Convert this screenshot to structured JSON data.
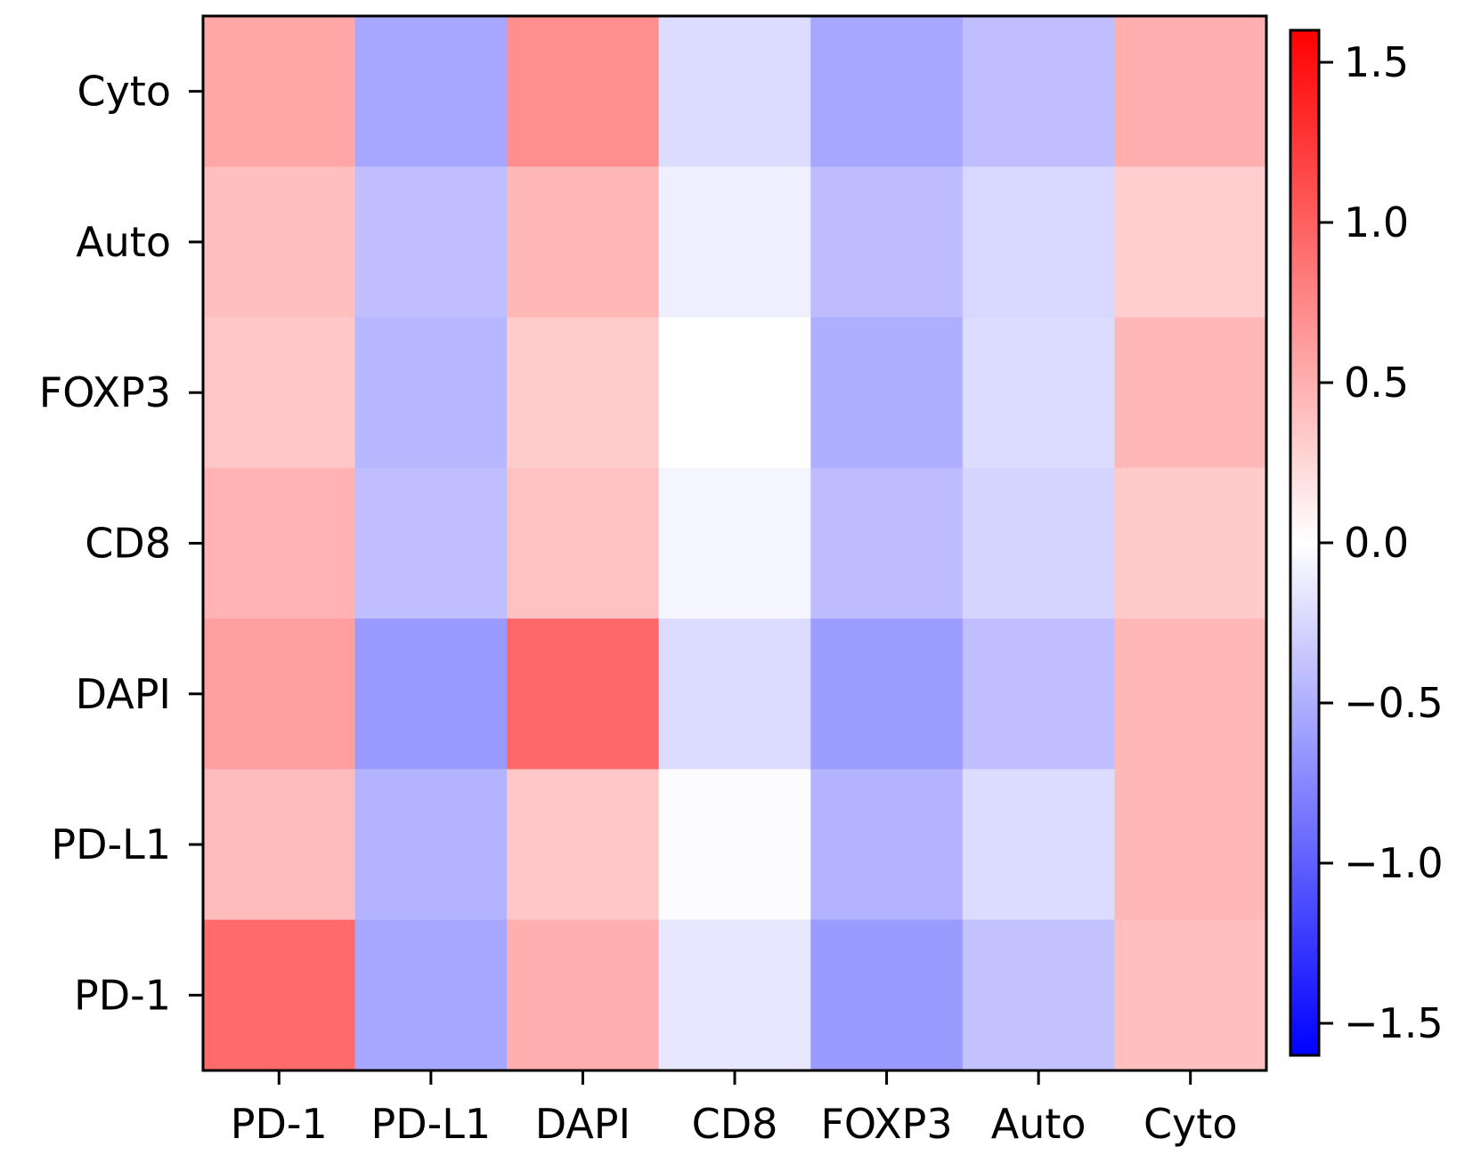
{
  "chart_data": {
    "type": "heatmap",
    "title": "",
    "xlabel": "",
    "ylabel": "",
    "x_categories": [
      "PD-1",
      "PD-L1",
      "DAPI",
      "CD8",
      "FOXP3",
      "Auto",
      "Cyto"
    ],
    "y_categories_top_to_bottom": [
      "Cyto",
      "Auto",
      "FOXP3",
      "CD8",
      "DAPI",
      "PD-L1",
      "PD-1"
    ],
    "values_top_to_bottom": [
      [
        0.55,
        -0.55,
        0.7,
        -0.22,
        -0.55,
        -0.4,
        0.5
      ],
      [
        0.4,
        -0.4,
        0.45,
        -0.1,
        -0.42,
        -0.25,
        0.3
      ],
      [
        0.35,
        -0.45,
        0.32,
        0.0,
        -0.5,
        -0.22,
        0.45
      ],
      [
        0.48,
        -0.4,
        0.38,
        -0.06,
        -0.42,
        -0.27,
        0.33
      ],
      [
        0.6,
        -0.63,
        0.95,
        -0.22,
        -0.62,
        -0.4,
        0.45
      ],
      [
        0.42,
        -0.48,
        0.35,
        -0.02,
        -0.48,
        -0.22,
        0.45
      ],
      [
        0.93,
        -0.55,
        0.5,
        -0.15,
        -0.63,
        -0.38,
        0.4
      ]
    ],
    "colormap": "bwr",
    "color_range": [
      -1.6,
      1.6
    ],
    "colorbar": {
      "ticks": [
        1.5,
        1.0,
        0.5,
        0.0,
        -0.5,
        -1.0,
        -1.5
      ],
      "tick_labels": [
        "1.5",
        "1.0",
        "0.5",
        "0.0",
        "−0.5",
        "−1.0",
        "−1.5"
      ]
    }
  }
}
